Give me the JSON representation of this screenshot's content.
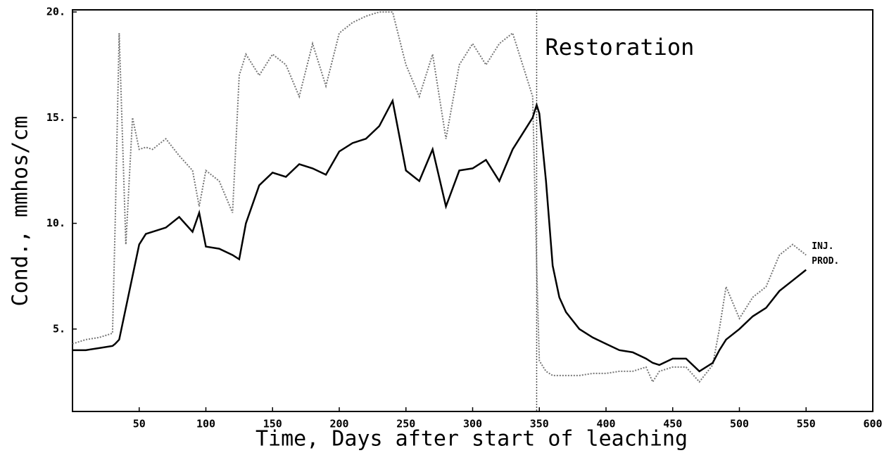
{
  "chart_data": {
    "type": "line",
    "xlabel": "Time, Days after start of leaching",
    "ylabel": "Cond., mmhos/cm",
    "xlim": [
      0,
      600
    ],
    "ylim": [
      1.1,
      20.1
    ],
    "xticks": [
      50,
      100,
      150,
      200,
      250,
      300,
      350,
      400,
      450,
      500,
      550,
      600
    ],
    "yticks": [
      {
        "value": 5,
        "label": "5."
      },
      {
        "value": 10,
        "label": "10."
      },
      {
        "value": 15,
        "label": "15."
      },
      {
        "value": 20,
        "label": "20."
      }
    ],
    "grid": false,
    "annotations": [
      {
        "text": "Restoration",
        "x": 348
      }
    ],
    "x": [
      0,
      10,
      20,
      30,
      32,
      35,
      40,
      45,
      50,
      55,
      60,
      70,
      80,
      90,
      95,
      100,
      110,
      120,
      125,
      130,
      140,
      150,
      160,
      170,
      180,
      190,
      200,
      210,
      220,
      230,
      240,
      250,
      260,
      270,
      280,
      290,
      300,
      310,
      320,
      330,
      340,
      345,
      348,
      350,
      355,
      360,
      365,
      370,
      380,
      390,
      400,
      410,
      420,
      430,
      435,
      440,
      450,
      460,
      470,
      480,
      485,
      490,
      500,
      510,
      520,
      530,
      540,
      550
    ],
    "series": [
      {
        "name": "INJ.",
        "color": "#777777",
        "dash": true,
        "values": [
          4.3,
          4.5,
          4.6,
          4.8,
          10,
          19,
          9,
          15,
          13.5,
          13.6,
          13.5,
          14.0,
          13.2,
          12.5,
          10.8,
          12.5,
          12.0,
          10.5,
          17,
          18,
          17.0,
          18.0,
          17.5,
          16,
          18.5,
          16.5,
          19,
          19.5,
          19.8,
          20,
          20,
          17.5,
          16,
          18,
          14,
          17.5,
          18.5,
          17.5,
          18.5,
          19,
          17,
          16,
          8,
          3.5,
          3.0,
          2.8,
          2.8,
          2.8,
          2.8,
          2.9,
          2.9,
          3.0,
          3.0,
          3.2,
          2.5,
          3.0,
          3.2,
          3.2,
          2.5,
          3.3,
          5,
          7,
          5.5,
          6.5,
          7.0,
          8.5,
          9,
          8.5
        ]
      },
      {
        "name": "PROD.",
        "color": "#000000",
        "dash": false,
        "values": [
          4.0,
          4.0,
          4.1,
          4.2,
          4.3,
          4.5,
          6.0,
          7.5,
          9.0,
          9.5,
          9.6,
          9.8,
          10.3,
          9.6,
          10.5,
          8.9,
          8.8,
          8.5,
          8.3,
          10.0,
          11.8,
          12.4,
          12.2,
          12.8,
          12.6,
          12.3,
          13.4,
          13.8,
          14.0,
          14.6,
          15.8,
          12.5,
          12.0,
          13.5,
          10.8,
          12.5,
          12.6,
          13.0,
          12.0,
          13.5,
          14.5,
          15.0,
          15.6,
          15.2,
          12,
          8,
          6.5,
          5.8,
          5.0,
          4.6,
          4.3,
          4.0,
          3.9,
          3.6,
          3.4,
          3.3,
          3.6,
          3.6,
          3.0,
          3.4,
          4.0,
          4.5,
          5.0,
          5.6,
          6.0,
          6.8,
          7.3,
          7.8
        ]
      }
    ]
  }
}
